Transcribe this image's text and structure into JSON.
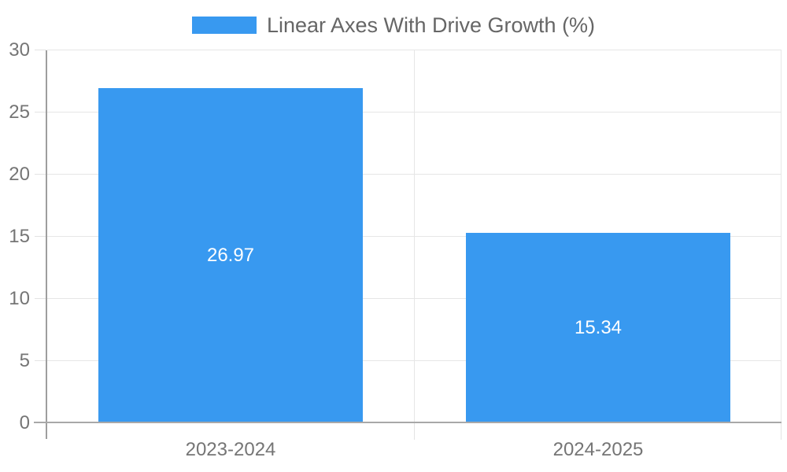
{
  "chart_data": {
    "type": "bar",
    "title": "Linear Axes With Drive Growth (%)",
    "legend": {
      "label": "Linear Axes With Drive Growth (%)",
      "position": "top"
    },
    "categories": [
      "2023-2024",
      "2024-2025"
    ],
    "values": [
      26.97,
      15.34
    ],
    "value_labels": [
      "26.97",
      "15.34"
    ],
    "xlabel": "",
    "ylabel": "",
    "ylim": [
      0,
      30
    ],
    "yticks": [
      0,
      5,
      10,
      15,
      20,
      25,
      30
    ],
    "grid": true,
    "bar_width_fraction": 0.72
  },
  "colors": {
    "bar": "#3899F0",
    "value_label": "#FFFFFF",
    "legend_text": "#666666",
    "tick_label": "#757575",
    "gridline": "#E6E6E6",
    "axis_line": "#9E9E9E",
    "baseline": "#A8A8A8",
    "background": "#FFFFFF"
  }
}
